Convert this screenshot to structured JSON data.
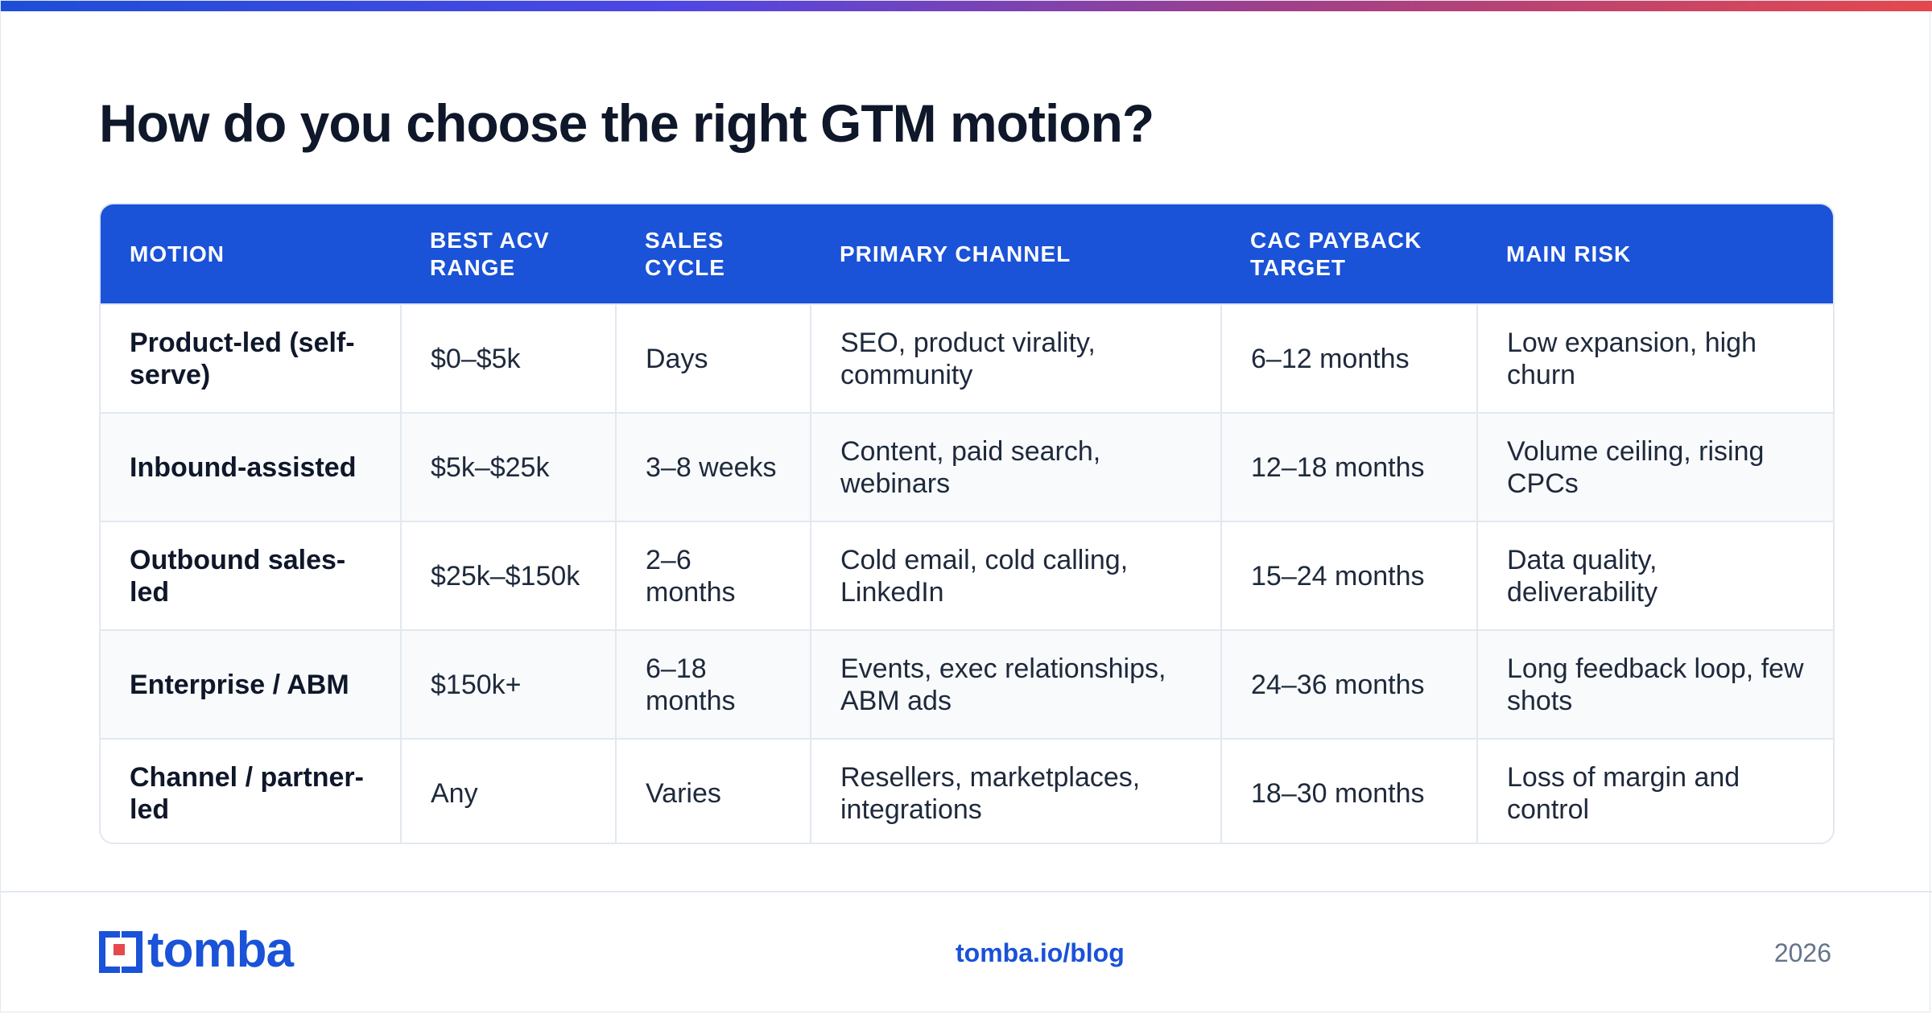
{
  "title": "How do you choose the right GTM motion?",
  "table": {
    "headers": [
      "MOTION",
      "BEST ACV RANGE",
      "SALES CYCLE",
      "PRIMARY CHANNEL",
      "CAC PAYBACK TARGET",
      "MAIN RISK"
    ],
    "rows": [
      [
        "Product-led (self-serve)",
        "$0–$5k",
        "Days",
        "SEO, product virality, community",
        "6–12 months",
        "Low expansion, high churn"
      ],
      [
        "Inbound-assisted",
        "$5k–$25k",
        "3–8 weeks",
        "Content, paid search, webinars",
        "12–18 months",
        "Volume ceiling, rising CPCs"
      ],
      [
        "Outbound sales-led",
        "$25k–$150k",
        "2–6 months",
        "Cold email, cold calling, LinkedIn",
        "15–24 months",
        "Data quality, deliverability"
      ],
      [
        "Enterprise / ABM",
        "$150k+",
        "6–18 months",
        "Events, exec relationships, ABM ads",
        "24–36 months",
        "Long feedback loop, few shots"
      ],
      [
        "Channel / partner-led",
        "Any",
        "Varies",
        "Resellers, marketplaces, integrations",
        "18–30 months",
        "Loss of margin and control"
      ]
    ]
  },
  "footer": {
    "brand": "tomba",
    "link": "tomba.io/blog",
    "year": "2026"
  },
  "colors": {
    "accent": "#1a52d8",
    "logo_red": "#e5484d",
    "text": "#0f172a",
    "muted": "#64748b"
  },
  "icons": {
    "logo": "tomba-logo-icon"
  }
}
